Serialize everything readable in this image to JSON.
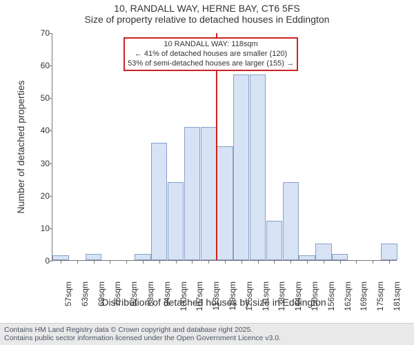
{
  "titles": {
    "line1": "10, RANDALL WAY, HERNE BAY, CT6 5FS",
    "line2": "Size of property relative to detached houses in Eddington"
  },
  "chart": {
    "type": "histogram",
    "background_color": "#ffffff",
    "bar_fill": "#d7e3f4",
    "bar_stroke": "#87a0c7",
    "axis_color": "#767676",
    "ylim": [
      0,
      70
    ],
    "ytick_step": 10,
    "ylabel": "Number of detached properties",
    "xlabel": "Distribution of detached houses by size in Eddington",
    "xcategories": [
      "57sqm",
      "63sqm",
      "69sqm",
      "76sqm",
      "82sqm",
      "88sqm",
      "94sqm",
      "100sqm",
      "107sqm",
      "113sqm",
      "119sqm",
      "125sqm",
      "131sqm",
      "138sqm",
      "144sqm",
      "150sqm",
      "156sqm",
      "162sqm",
      "169sqm",
      "175sqm",
      "181sqm"
    ],
    "values": [
      1.5,
      0,
      2,
      0,
      0,
      2,
      36,
      24,
      41,
      41,
      35,
      57,
      57,
      12,
      24,
      1.5,
      5,
      2,
      0,
      0,
      5
    ],
    "reference": {
      "index": 10,
      "color": "#cc2222"
    },
    "annotation": {
      "line1": "10 RANDALL WAY: 118sqm",
      "line2": "← 41% of detached houses are smaller (120)",
      "line3": "53% of semi-detached houses are larger (155) →",
      "border_color": "#cc2222"
    },
    "title_fontsize": 14,
    "label_fontsize": 14,
    "tick_fontsize": 12,
    "annotation_fontsize": 11
  },
  "footer": {
    "line1": "Contains HM Land Registry data © Crown copyright and database right 2025.",
    "line2": "Contains public sector information licensed under the Open Government Licence v3.0.",
    "background_color": "#e9e9e9"
  }
}
